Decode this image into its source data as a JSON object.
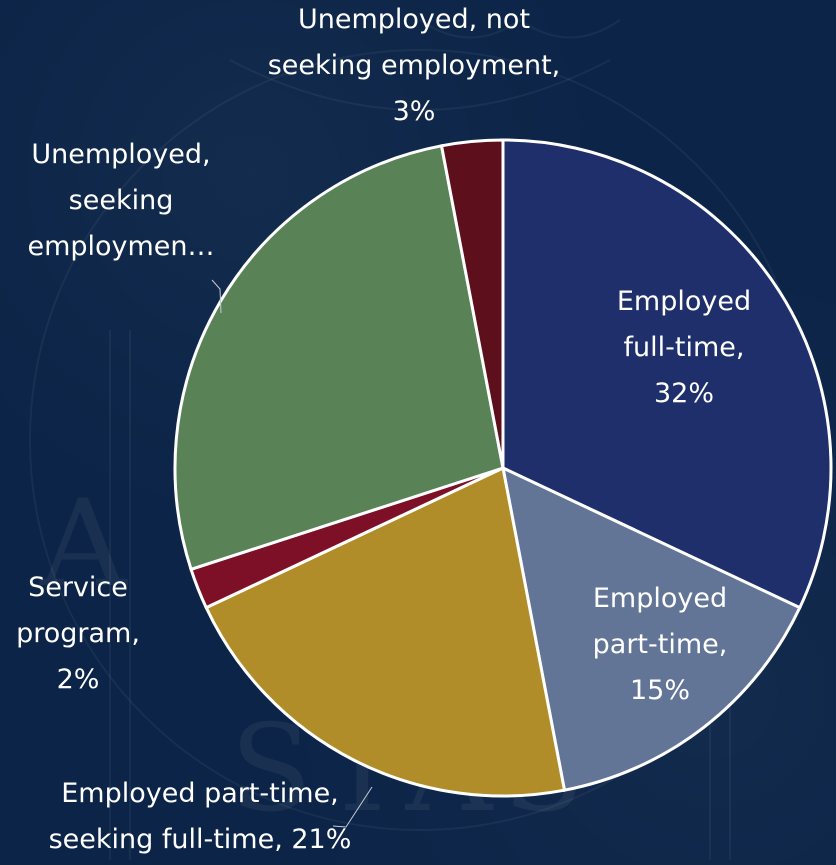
{
  "chart_data": {
    "type": "pie",
    "title": "",
    "slices": [
      {
        "label": "Employed full-time",
        "value": 32,
        "label_lines": [
          "Employed",
          "full-time,",
          "32%"
        ],
        "color": "#1f2f6b"
      },
      {
        "label": "Employed part-time",
        "value": 15,
        "label_lines": [
          "Employed",
          "part-time,",
          "15%"
        ],
        "color": "#637597"
      },
      {
        "label": "Employed part-time, seeking full-time",
        "value": 21,
        "label_lines": [
          "Employed part-time,",
          "seeking full-time, 21%"
        ],
        "color": "#b08d28"
      },
      {
        "label": "Service program",
        "value": 2,
        "label_lines": [
          "Service",
          "program,",
          "2%"
        ],
        "color": "#7d1026"
      },
      {
        "label": "Unemployed, seeking employment",
        "value": 27,
        "label_lines": [
          "Unemployed,",
          "seeking",
          "employmen…"
        ],
        "color": "#5a8257"
      },
      {
        "label": "Unemployed, not seeking employment",
        "value": 3,
        "label_lines": [
          "Unemployed, not",
          "seeking employment,",
          "3%"
        ],
        "color": "#5d101c"
      }
    ],
    "start_angle": "12 o'clock",
    "direction": "clockwise",
    "legend": "none"
  }
}
